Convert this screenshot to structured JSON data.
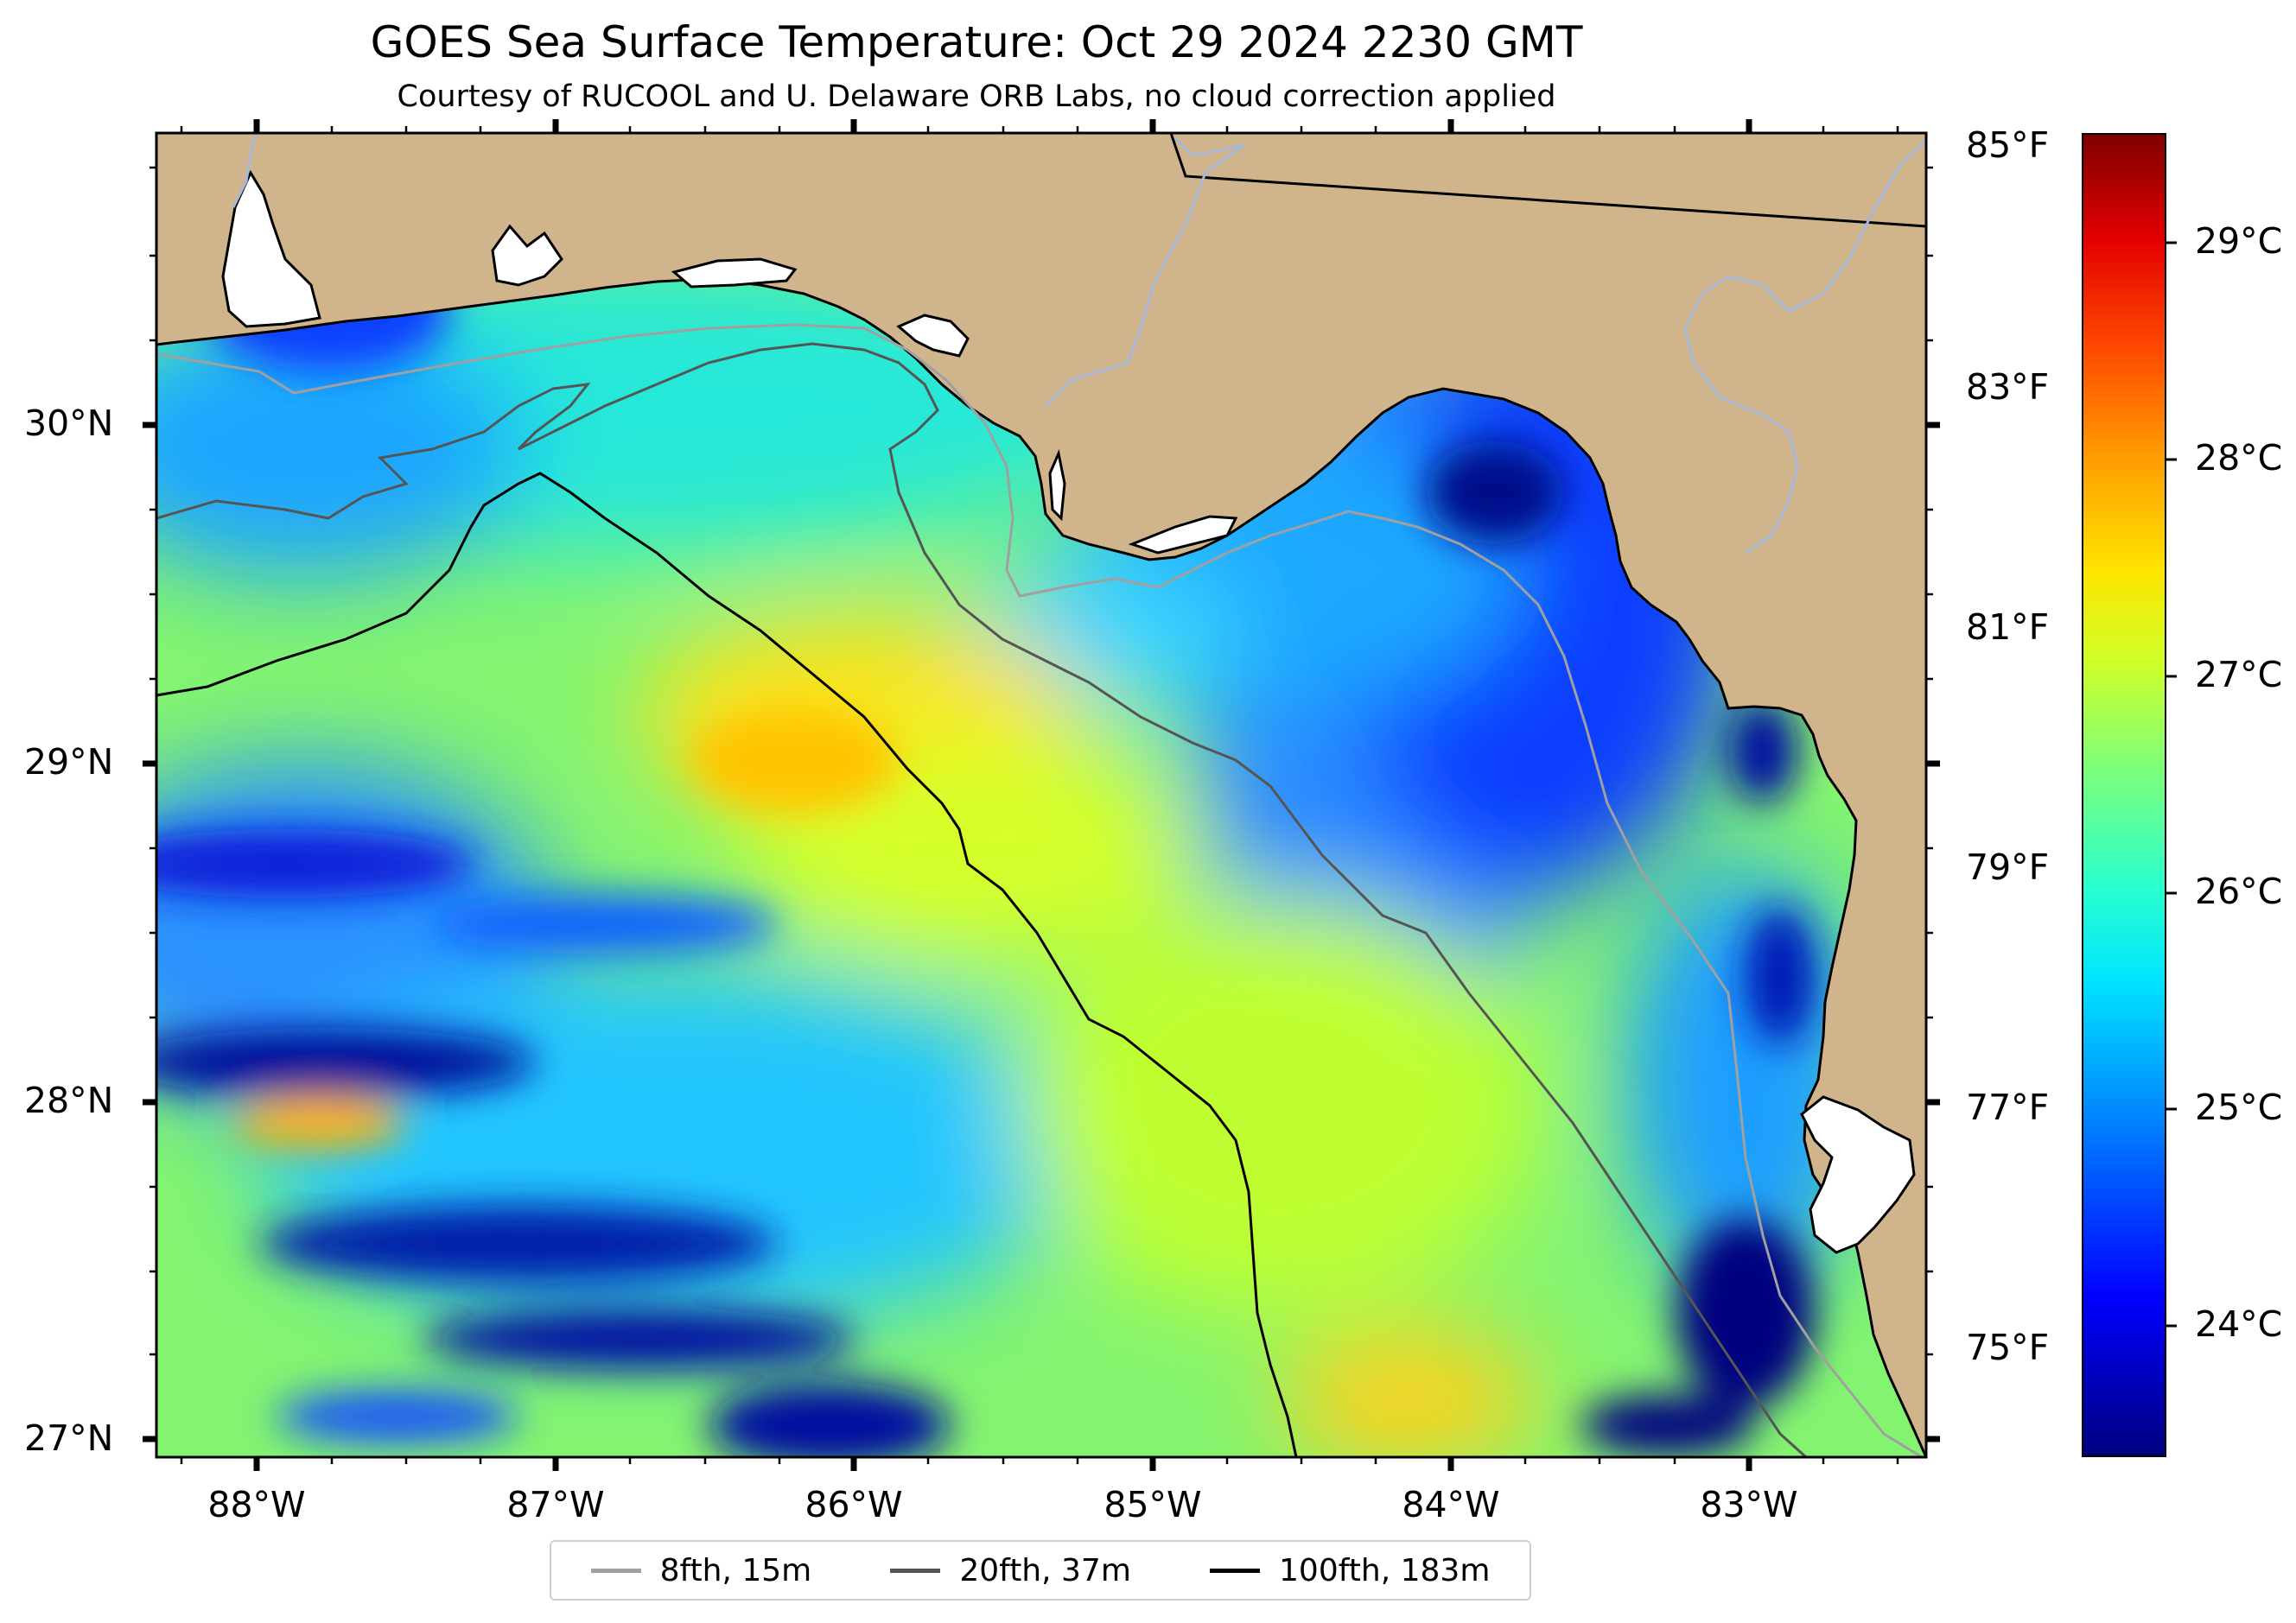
{
  "title": "GOES Sea Surface Temperature: Oct 29 2024 2230 GMT",
  "subtitle": "Courtesy of RUCOOL and U. Delaware ORB Labs, no cloud correction applied",
  "colors": {
    "land": "#d0b48c",
    "water_base": "#7cf07c",
    "coast": "#000000",
    "isobath_8fth": "#a0a0a0",
    "isobath_20fth": "#555555",
    "isobath_100fth": "#000000"
  },
  "lat_labels": [
    "30°N",
    "29°N",
    "28°N",
    "27°N"
  ],
  "lon_labels": [
    "88°W",
    "87°W",
    "86°W",
    "85°W",
    "84°W",
    "83°W"
  ],
  "fahrenheit_labels": [
    "85°F",
    "83°F",
    "81°F",
    "79°F",
    "77°F",
    "75°F"
  ],
  "celsius_labels": [
    "29°C",
    "28°C",
    "27°C",
    "26°C",
    "25°C",
    "24°C"
  ],
  "legend": [
    {
      "label": "8fth, 15m",
      "color": "#a0a0a0"
    },
    {
      "label": "20fth, 37m",
      "color": "#555555"
    },
    {
      "label": "100fth, 183m",
      "color": "#000000"
    }
  ]
}
